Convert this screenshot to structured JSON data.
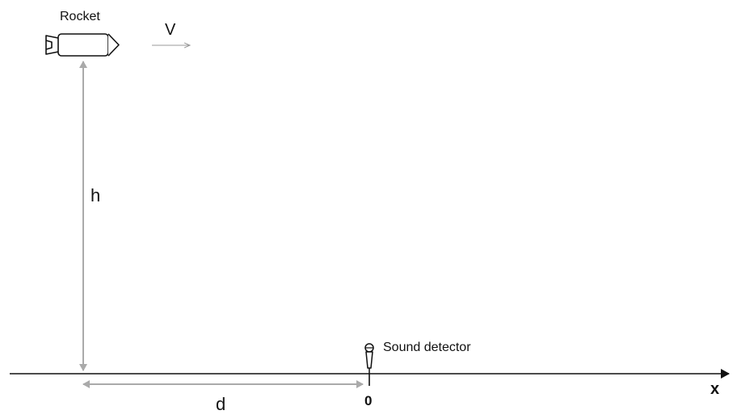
{
  "labels": {
    "rocket": "Rocket",
    "velocity": "V",
    "height": "h",
    "distance": "d",
    "detector": "Sound detector",
    "origin": "0",
    "axis": "x"
  },
  "icons": {
    "rocket": "rocket-icon",
    "microphone": "microphone-icon",
    "velocity_arrow": "arrow-right-icon"
  },
  "colors": {
    "outline": "#111111",
    "dimension": "#aaaaaa",
    "axis": "#111111"
  }
}
